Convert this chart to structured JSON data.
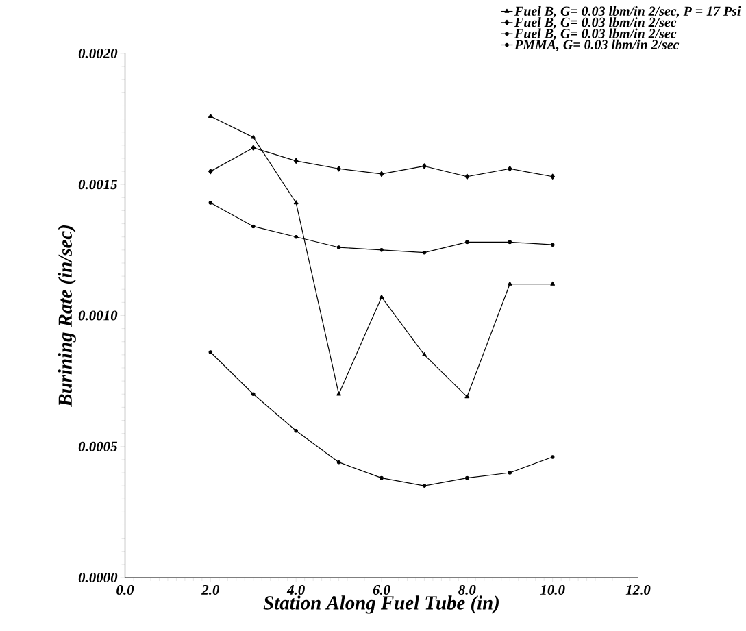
{
  "chart_data": {
    "type": "line",
    "xlabel": "Station Along Fuel Tube (in)",
    "ylabel": "Burining Rate (in/sec)",
    "x": [
      2,
      3,
      4,
      5,
      6,
      7,
      8,
      9,
      10
    ],
    "series": [
      {
        "name": "Fuel B, G= 0.03 lbm/in 2/sec, P = 17 Psi",
        "color": "#000000",
        "marker": "triangle",
        "values": [
          0.00176,
          0.00168,
          0.00143,
          0.0007,
          0.00107,
          0.00085,
          0.00069,
          0.00112,
          0.00112
        ]
      },
      {
        "name": "Fuel B, G= 0.03 lbm/in 2/sec",
        "color": "#000000",
        "marker": "diamond",
        "values": [
          0.00155,
          0.00164,
          0.00159,
          0.00156,
          0.00154,
          0.00157,
          0.00153,
          0.00156,
          0.00153
        ]
      },
      {
        "name": "Fuel B, G= 0.03 lbm/in 2/sec",
        "color": "#000000",
        "marker": "circle",
        "values": [
          0.00143,
          0.00134,
          0.0013,
          0.00126,
          0.00125,
          0.00124,
          0.00128,
          0.00128,
          0.00127
        ]
      },
      {
        "name": "PMMA, G= 0.03 lbm/in 2/sec",
        "color": "#000000",
        "marker": "circle",
        "values": [
          0.00086,
          0.0007,
          0.00056,
          0.00044,
          0.00038,
          0.00035,
          0.00038,
          0.0004,
          0.00046
        ]
      }
    ],
    "xlim": [
      0,
      12
    ],
    "ylim": [
      0,
      0.002
    ],
    "xticks": [
      {
        "value": 0,
        "label": "0.0"
      },
      {
        "value": 2,
        "label": "2.0"
      },
      {
        "value": 4,
        "label": "4.0"
      },
      {
        "value": 6,
        "label": "6.0"
      },
      {
        "value": 8,
        "label": "8.0"
      },
      {
        "value": 10,
        "label": "10.0"
      },
      {
        "value": 12,
        "label": "12.0"
      }
    ],
    "yticks": [
      {
        "value": 0,
        "label": "0.0000"
      },
      {
        "value": 0.0005,
        "label": "0.0005"
      },
      {
        "value": 0.001,
        "label": "0.0010"
      },
      {
        "value": 0.0015,
        "label": "0.0015"
      },
      {
        "value": 0.002,
        "label": "0.0020"
      }
    ],
    "legend": "top",
    "line_style": "solid",
    "grid": false
  }
}
